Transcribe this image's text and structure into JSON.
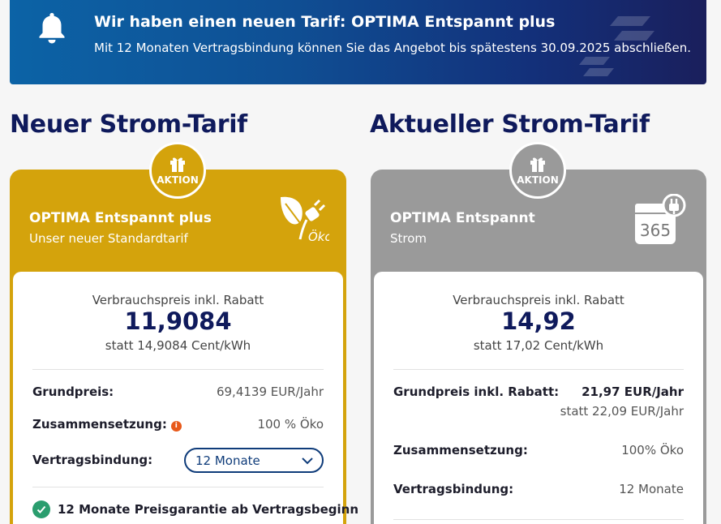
{
  "banner": {
    "title": "Wir haben einen neuen Tarif: OPTIMA Entspannt plus",
    "text": "Mit 12 Monaten Vertragsbindung können Sie das Angebot bis spätestens 30.09.2025 abschließen.",
    "icon": "bell-icon"
  },
  "new_tariff": {
    "section_title": "Neuer Strom-Tarif",
    "badge": "AKTION",
    "name": "OPTIMA Entspannt plus",
    "subtitle": "Unser neuer Standardtarif",
    "icon_text": "Öko",
    "card_color": "#d4a30c",
    "price_label": "Verbrauchspreis inkl. Rabatt",
    "price_value": "11,9084",
    "price_statt": "statt 14,9084 Cent/kWh",
    "grundpreis_label": "Grundpreis:",
    "grundpreis_value": "69,4139 EUR/Jahr",
    "zusammensetzung_label": "Zusammensetzung:",
    "zusammensetzung_value": "100 % Öko",
    "vertragsbindung_label": "Vertragsbindung:",
    "vertragsbindung_selected": "12 Monate",
    "guarantee_text": "12 Monate Preisgarantie ab Vertragsbeginn"
  },
  "current_tariff": {
    "section_title": "Aktueller Strom-Tarif",
    "badge": "AKTION",
    "name": "OPTIMA Entspannt",
    "subtitle": "Strom",
    "icon_text": "365",
    "card_color": "#9a9a9a",
    "price_label": "Verbrauchspreis inkl. Rabatt",
    "price_value": "14,92",
    "price_statt": "statt 17,02 Cent/kWh",
    "grundpreis_label": "Grundpreis inkl. Rabatt:",
    "grundpreis_value": "21,97 EUR/Jahr",
    "grundpreis_statt": "statt 22,09 EUR/Jahr",
    "zusammensetzung_label": "Zusammensetzung:",
    "zusammensetzung_value": "100% Öko",
    "vertragsbindung_label": "Vertragsbindung:",
    "vertragsbindung_value": "12 Monate"
  }
}
